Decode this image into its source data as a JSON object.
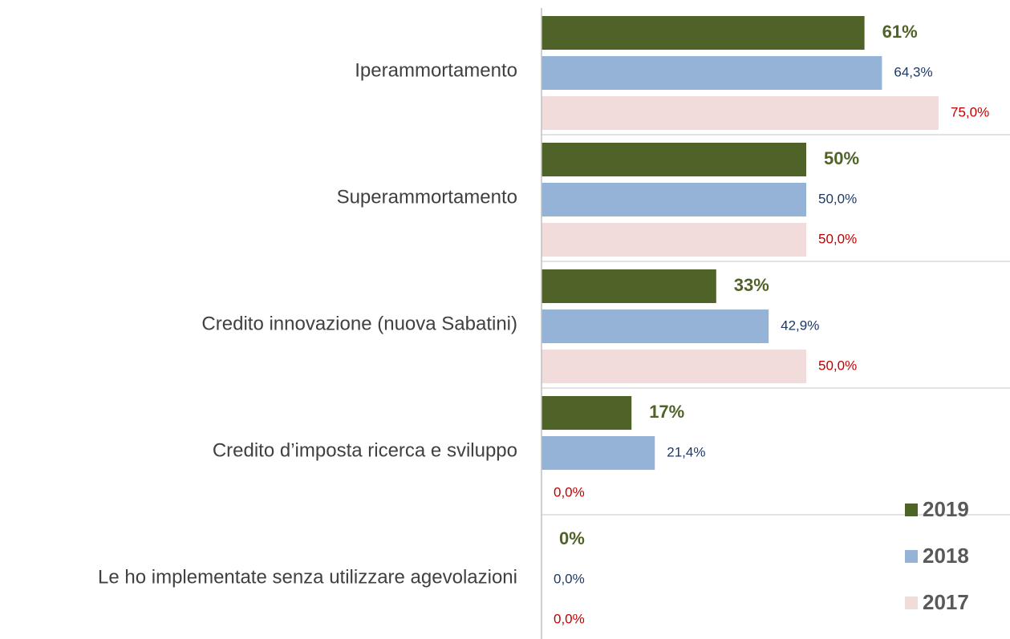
{
  "chart_data": {
    "type": "hbar",
    "categories": [
      "Iperammortamento",
      "Superammortamento",
      "Credito innovazione (nuova Sabatini)",
      "Credito d’imposta ricerca e sviluppo",
      "Le ho implementate senza utilizzare agevolazioni"
    ],
    "series": [
      {
        "name": "2019",
        "color": "#4f6228",
        "label_color": "#4f6228",
        "values": [
          61,
          50,
          33,
          17,
          0
        ],
        "value_labels": [
          "61%",
          "50%",
          "33%",
          "17%",
          "0%"
        ]
      },
      {
        "name": "2018",
        "color": "#95b3d7",
        "label_color": "#1f3864",
        "values": [
          64.3,
          50,
          42.9,
          21.4,
          0
        ],
        "value_labels": [
          "64,3%",
          "50,0%",
          "42,9%",
          "21,4%",
          "0,0%"
        ]
      },
      {
        "name": "2017",
        "color": "#f2dcdb",
        "label_color": "#c00000",
        "values": [
          75,
          50,
          50,
          0,
          0
        ],
        "value_labels": [
          "75,0%",
          "50,0%",
          "50,0%",
          "0,0%",
          "0,0%"
        ]
      }
    ],
    "xlim": [
      0,
      85
    ],
    "legend": "lower right"
  }
}
